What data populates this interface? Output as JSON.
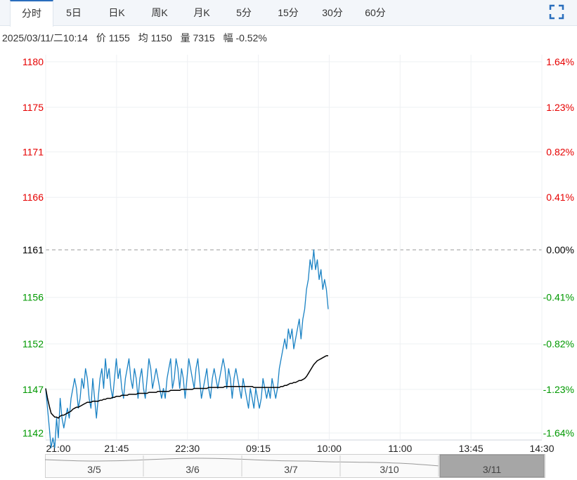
{
  "tabs": [
    {
      "label": "分时",
      "active": true
    },
    {
      "label": "5日",
      "active": false
    },
    {
      "label": "日K",
      "active": false
    },
    {
      "label": "周K",
      "active": false
    },
    {
      "label": "月K",
      "active": false
    },
    {
      "label": "5分",
      "active": false
    },
    {
      "label": "15分",
      "active": false
    },
    {
      "label": "30分",
      "active": false
    },
    {
      "label": "60分",
      "active": false
    }
  ],
  "fullscreen_icon": "fullscreen-icon",
  "info": {
    "datetime": "2025/03/11/二10:14",
    "price": "价 1155",
    "avg": "均 1150",
    "volume": "量 7315",
    "change": "幅 -0.52%"
  },
  "colors": {
    "up": "#e60000",
    "down": "#009900",
    "flat": "#000000",
    "price_line": "#1a82c4",
    "avg_line": "#000000",
    "accent": "#2a6ebd"
  },
  "chart_data": {
    "type": "line",
    "prev_close": 1161,
    "ylim": [
      1142,
      1180
    ],
    "y_ticks": [
      "1180",
      "1175",
      "1171",
      "1166",
      "1161",
      "1156",
      "1152",
      "1147",
      "1142"
    ],
    "y_tick_values": [
      1180,
      1175.4,
      1170.9,
      1166.3,
      1161,
      1156.2,
      1151.5,
      1146.9,
      1142.5
    ],
    "pct_ticks": [
      "1.64%",
      "1.23%",
      "0.82%",
      "0.41%",
      "0.00%",
      "-0.41%",
      "-0.82%",
      "-1.23%",
      "-1.64%"
    ],
    "x_ticks": [
      "21:00",
      "21:45",
      "22:30",
      "09:15",
      "10:00",
      "11:00",
      "13:45",
      "14:30"
    ],
    "x_sessions": "night 21:00-23:00, day 09:00-14:30",
    "series": [
      {
        "name": "价",
        "values": [
          1147,
          1145,
          1143,
          1141,
          1142,
          1141,
          1144,
          1142,
          1146,
          1144,
          1143,
          1144,
          1145,
          1144,
          1146,
          1147,
          1148,
          1147,
          1145,
          1146,
          1148,
          1147,
          1149,
          1148,
          1146,
          1145,
          1148,
          1146,
          1144,
          1146,
          1148,
          1149,
          1147,
          1150,
          1148,
          1149,
          1147,
          1146,
          1148,
          1150,
          1148,
          1149,
          1147,
          1146,
          1148,
          1149,
          1150,
          1148,
          1147,
          1149,
          1148,
          1146,
          1148,
          1149,
          1147,
          1146,
          1148,
          1150,
          1149,
          1147,
          1148,
          1149,
          1148,
          1147,
          1146,
          1147,
          1146,
          1148,
          1149,
          1150,
          1147,
          1148,
          1150,
          1149,
          1147,
          1149,
          1148,
          1146,
          1148,
          1150,
          1149,
          1148,
          1147,
          1149,
          1150,
          1148,
          1146,
          1147,
          1148,
          1149,
          1147,
          1146,
          1148,
          1149,
          1148,
          1147,
          1148,
          1149,
          1150,
          1149,
          1147,
          1149,
          1148,
          1146,
          1148,
          1149,
          1148,
          1147,
          1146,
          1148,
          1147,
          1146,
          1145,
          1147,
          1146,
          1145,
          1147,
          1146,
          1145,
          1146,
          1148,
          1147,
          1146,
          1147,
          1146,
          1148,
          1147,
          1146,
          1147,
          1149,
          1150,
          1151,
          1152,
          1151,
          1153,
          1152,
          1153,
          1151,
          1152,
          1153,
          1154,
          1152,
          1154,
          1155,
          1157,
          1158,
          1160,
          1159,
          1161,
          1159,
          1160,
          1158,
          1159,
          1157,
          1158,
          1157,
          1155
        ],
        "color": "#1a82c4"
      },
      {
        "name": "均",
        "values": [
          1147,
          1146,
          1145.2,
          1144.5,
          1144.3,
          1144.1,
          1144.1,
          1144.0,
          1144.2,
          1144.3,
          1144.3,
          1144.4,
          1144.5,
          1144.6,
          1144.7,
          1144.9,
          1145.0,
          1145.1,
          1145.1,
          1145.2,
          1145.3,
          1145.4,
          1145.5,
          1145.6,
          1145.6,
          1145.6,
          1145.7,
          1145.7,
          1145.7,
          1145.7,
          1145.8,
          1145.8,
          1145.9,
          1145.9,
          1146.0,
          1146.0,
          1146.0,
          1146.1,
          1146.1,
          1146.2,
          1146.2,
          1146.2,
          1146.3,
          1146.3,
          1146.3,
          1146.3,
          1146.4,
          1146.4,
          1146.4,
          1146.4,
          1146.4,
          1146.5,
          1146.5,
          1146.5,
          1146.5,
          1146.5,
          1146.5,
          1146.6,
          1146.6,
          1146.6,
          1146.6,
          1146.6,
          1146.7,
          1146.7,
          1146.7,
          1146.7,
          1146.7,
          1146.7,
          1146.7,
          1146.8,
          1146.8,
          1146.8,
          1146.8,
          1146.8,
          1146.8,
          1146.9,
          1146.9,
          1146.9,
          1146.9,
          1146.9,
          1146.9,
          1146.9,
          1147.0,
          1147.0,
          1147.0,
          1147.0,
          1147.0,
          1147.0,
          1147.0,
          1147.0,
          1147.1,
          1147.1,
          1147.1,
          1147.1,
          1147.1,
          1147.1,
          1147.1,
          1147.1,
          1147.1,
          1147.2,
          1147.2,
          1147.2,
          1147.2,
          1147.2,
          1147.2,
          1147.2,
          1147.2,
          1147.2,
          1147.2,
          1147.2,
          1147.2,
          1147.2,
          1147.2,
          1147.2,
          1147.2,
          1147.1,
          1147.1,
          1147.1,
          1147.1,
          1147.1,
          1147.1,
          1147.1,
          1147.1,
          1147.1,
          1147.1,
          1147.1,
          1147.1,
          1147.1,
          1147.1,
          1147.1,
          1147.2,
          1147.2,
          1147.3,
          1147.3,
          1147.4,
          1147.5,
          1147.5,
          1147.6,
          1147.6,
          1147.7,
          1147.8,
          1147.8,
          1147.9,
          1148.0,
          1148.2,
          1148.5,
          1148.8,
          1149.1,
          1149.4,
          1149.6,
          1149.8,
          1149.9,
          1150.0,
          1150.1,
          1150.2,
          1150.3,
          1150.3
        ],
        "color": "#000000"
      }
    ]
  },
  "navigator": {
    "labels": [
      "3/5",
      "3/6",
      "3/7",
      "3/10",
      "3/11"
    ],
    "selected": "3/11"
  }
}
